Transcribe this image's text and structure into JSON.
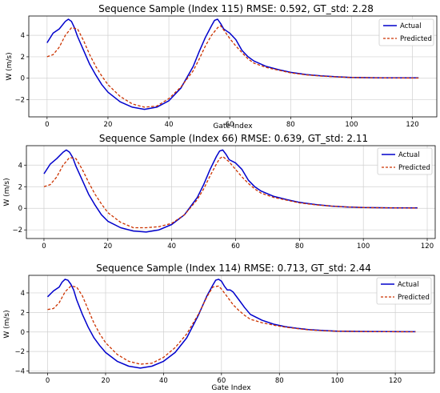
{
  "figure": {
    "background": "#ffffff",
    "actual_color": "#0000cc",
    "predicted_color": "#cc3300",
    "grid_color": "#d0d0d0"
  },
  "chart_data": [
    {
      "type": "line",
      "title": "Sequence Sample (Index 115) RMSE: 0.592, GT_std: 2.28",
      "xlabel": "Gate Index",
      "ylabel": "W (m/s)",
      "xlim": [
        -6,
        128
      ],
      "ylim": [
        -3.6,
        5.8
      ],
      "xticks": [
        0,
        20,
        40,
        60,
        80,
        100,
        120
      ],
      "yticks": [
        -2,
        0,
        2,
        4
      ],
      "grid": true,
      "legend_position": "top-right",
      "series": [
        {
          "name": "Actual",
          "color": "#0000cc",
          "style": "solid",
          "x": [
            0,
            2,
            4,
            6,
            7,
            8,
            9,
            10,
            12,
            14,
            16,
            18,
            20,
            24,
            28,
            32,
            36,
            40,
            44,
            48,
            50,
            52,
            54,
            55,
            56,
            57,
            58,
            59,
            60,
            62,
            64,
            66,
            68,
            72,
            76,
            80,
            85,
            90,
            95,
            100,
            110,
            122
          ],
          "y": [
            3.3,
            4.2,
            4.6,
            5.3,
            5.5,
            5.3,
            4.7,
            3.9,
            2.6,
            1.3,
            0.3,
            -0.6,
            -1.3,
            -2.2,
            -2.7,
            -2.9,
            -2.7,
            -2.1,
            -0.9,
            1.1,
            2.5,
            3.8,
            4.9,
            5.4,
            5.5,
            5.1,
            4.6,
            4.4,
            4.2,
            3.6,
            2.6,
            2.0,
            1.6,
            1.1,
            0.8,
            0.55,
            0.35,
            0.22,
            0.14,
            0.08,
            0.04,
            0.03
          ]
        },
        {
          "name": "Predicted",
          "color": "#cc3300",
          "style": "dashed",
          "x": [
            0,
            2,
            4,
            6,
            8,
            10,
            12,
            14,
            16,
            18,
            20,
            24,
            28,
            32,
            36,
            40,
            44,
            48,
            50,
            52,
            54,
            56,
            57,
            58,
            60,
            62,
            64,
            66,
            68,
            72,
            76,
            80,
            85,
            90,
            95,
            100,
            110,
            122
          ],
          "y": [
            2.0,
            2.2,
            2.9,
            4.0,
            4.7,
            4.6,
            3.5,
            2.2,
            1.1,
            0.2,
            -0.6,
            -1.7,
            -2.4,
            -2.7,
            -2.6,
            -1.9,
            -0.8,
            0.7,
            1.8,
            3.0,
            4.0,
            4.7,
            4.9,
            4.5,
            3.7,
            3.0,
            2.4,
            1.8,
            1.4,
            1.0,
            0.75,
            0.5,
            0.32,
            0.2,
            0.12,
            0.07,
            0.03,
            0.02
          ]
        }
      ]
    },
    {
      "type": "line",
      "title": "Sequence Sample (Index 66) RMSE: 0.639, GT_std: 2.11",
      "xlabel": "",
      "ylabel": "W (m/s)",
      "xlim": [
        -5.5,
        122.5
      ],
      "ylim": [
        -2.8,
        5.8
      ],
      "xticks": [
        0,
        20,
        40,
        60,
        80,
        100,
        120
      ],
      "yticks": [
        -2,
        0,
        2,
        4
      ],
      "grid": true,
      "legend_position": "top-right",
      "series": [
        {
          "name": "Actual",
          "color": "#0000cc",
          "style": "solid",
          "x": [
            0,
            2,
            4,
            6,
            7,
            8,
            9,
            10,
            12,
            14,
            16,
            18,
            20,
            24,
            28,
            32,
            36,
            40,
            44,
            48,
            50,
            52,
            54,
            55,
            56,
            57,
            58,
            60,
            62,
            64,
            66,
            68,
            72,
            76,
            80,
            85,
            90,
            95,
            100,
            110,
            117
          ],
          "y": [
            3.2,
            4.1,
            4.6,
            5.2,
            5.4,
            5.2,
            4.7,
            3.9,
            2.6,
            1.3,
            0.3,
            -0.6,
            -1.2,
            -1.8,
            -2.1,
            -2.2,
            -2.0,
            -1.5,
            -0.6,
            1.0,
            2.2,
            3.6,
            4.8,
            5.3,
            5.4,
            5.0,
            4.5,
            4.2,
            3.6,
            2.6,
            2.0,
            1.6,
            1.1,
            0.8,
            0.55,
            0.35,
            0.2,
            0.12,
            0.07,
            0.04,
            0.03
          ]
        },
        {
          "name": "Predicted",
          "color": "#cc3300",
          "style": "dashed",
          "x": [
            0,
            2,
            4,
            6,
            8,
            10,
            12,
            14,
            16,
            18,
            20,
            24,
            28,
            32,
            36,
            40,
            44,
            48,
            50,
            52,
            54,
            55,
            56,
            58,
            60,
            62,
            64,
            66,
            68,
            72,
            76,
            80,
            85,
            90,
            95,
            100,
            110,
            117
          ],
          "y": [
            2.0,
            2.2,
            2.9,
            4.0,
            4.7,
            4.6,
            3.6,
            2.4,
            1.3,
            0.4,
            -0.4,
            -1.3,
            -1.8,
            -1.8,
            -1.7,
            -1.4,
            -0.6,
            0.8,
            1.8,
            3.0,
            4.1,
            4.6,
            4.8,
            4.3,
            3.6,
            2.9,
            2.3,
            1.8,
            1.4,
            1.0,
            0.75,
            0.5,
            0.32,
            0.2,
            0.12,
            0.07,
            0.03,
            0.02
          ]
        }
      ]
    },
    {
      "type": "line",
      "title": "Sequence Sample (Index 114) RMSE: 0.713, GT_std: 2.44",
      "xlabel": "Gate Index",
      "ylabel": "W (m/s)",
      "xlim": [
        -6.5,
        133.5
      ],
      "ylim": [
        -4.2,
        5.8
      ],
      "xticks": [
        0,
        20,
        40,
        60,
        80,
        100,
        120
      ],
      "yticks": [
        -4,
        -2,
        0,
        2,
        4
      ],
      "grid": true,
      "legend_position": "top-right",
      "series": [
        {
          "name": "Actual",
          "color": "#0000cc",
          "style": "solid",
          "x": [
            0,
            2,
            4,
            5,
            6,
            7,
            8,
            9,
            10,
            12,
            14,
            16,
            18,
            20,
            24,
            28,
            32,
            36,
            40,
            44,
            48,
            52,
            55,
            57,
            58,
            59,
            60,
            61,
            62,
            63,
            64,
            66,
            68,
            70,
            74,
            78,
            82,
            86,
            90,
            95,
            100,
            110,
            127
          ],
          "y": [
            3.6,
            4.2,
            4.6,
            5.1,
            5.4,
            5.3,
            4.9,
            4.3,
            3.3,
            1.8,
            0.5,
            -0.6,
            -1.4,
            -2.1,
            -3.0,
            -3.5,
            -3.7,
            -3.5,
            -3.0,
            -2.1,
            -0.6,
            1.7,
            3.7,
            4.8,
            5.3,
            5.4,
            5.2,
            4.7,
            4.3,
            4.3,
            4.1,
            3.3,
            2.5,
            1.8,
            1.2,
            0.8,
            0.55,
            0.38,
            0.25,
            0.15,
            0.09,
            0.05,
            0.03
          ]
        },
        {
          "name": "Predicted",
          "color": "#cc3300",
          "style": "dashed",
          "x": [
            0,
            2,
            4,
            6,
            8,
            10,
            12,
            14,
            16,
            18,
            20,
            24,
            28,
            32,
            36,
            40,
            44,
            48,
            52,
            55,
            57,
            59,
            60,
            62,
            64,
            66,
            68,
            70,
            74,
            78,
            82,
            86,
            90,
            95,
            100,
            110,
            127
          ],
          "y": [
            2.3,
            2.4,
            3.0,
            4.1,
            4.7,
            4.6,
            3.7,
            2.3,
            0.9,
            -0.2,
            -1.1,
            -2.3,
            -3.0,
            -3.3,
            -3.2,
            -2.6,
            -1.6,
            -0.2,
            1.8,
            3.6,
            4.6,
            4.7,
            4.4,
            3.6,
            2.8,
            2.2,
            1.7,
            1.3,
            0.95,
            0.7,
            0.5,
            0.35,
            0.22,
            0.13,
            0.08,
            0.04,
            0.02
          ]
        }
      ]
    }
  ]
}
